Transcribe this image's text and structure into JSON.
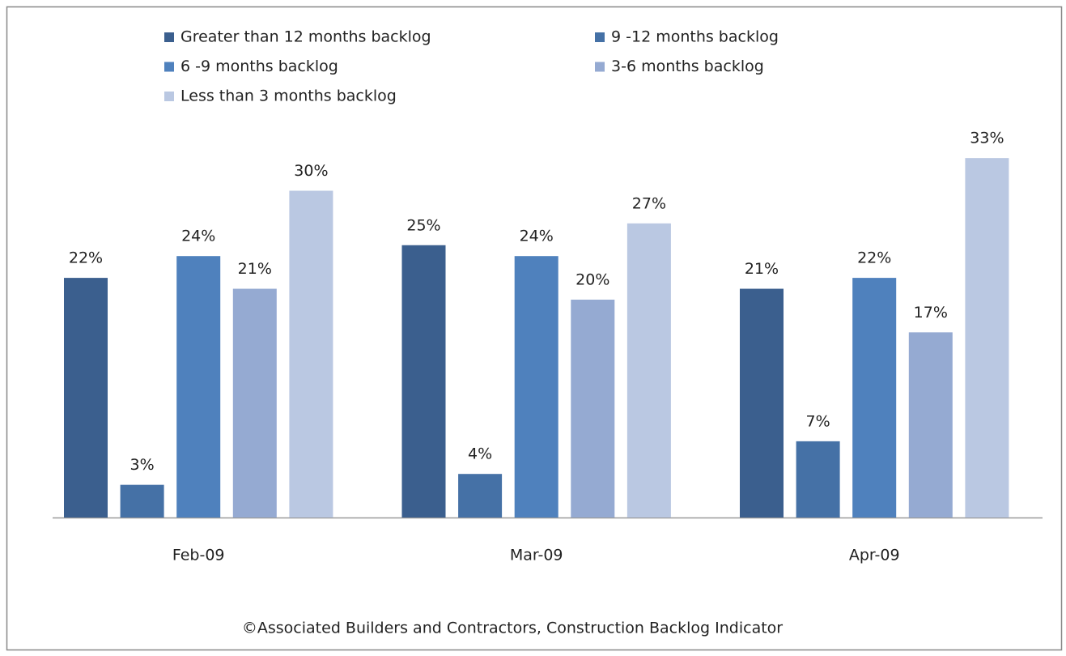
{
  "chart_data": {
    "type": "bar",
    "categories": [
      "Feb-09",
      "Mar-09",
      "Apr-09"
    ],
    "series": [
      {
        "name": "Greater than 12 months backlog",
        "color": "#3b5f8e",
        "values": [
          22,
          25,
          21
        ],
        "value_labels": [
          "22%",
          "25%",
          "21%"
        ]
      },
      {
        "name": "9 -12 months backlog",
        "color": "#4571a6",
        "values": [
          3,
          4,
          7
        ],
        "value_labels": [
          "3%",
          "4%",
          "7%"
        ]
      },
      {
        "name": "6 -9 months backlog",
        "color": "#4f81bd",
        "values": [
          24,
          24,
          22
        ],
        "value_labels": [
          "24%",
          "24%",
          "22%"
        ]
      },
      {
        "name": "3-6 months backlog",
        "color": "#95aad2",
        "values": [
          21,
          20,
          17
        ],
        "value_labels": [
          "21%",
          "20%",
          "17%"
        ]
      },
      {
        "name": "Less than 3 months backlog",
        "color": "#bac8e2",
        "values": [
          30,
          27,
          33
        ],
        "value_labels": [
          "30%",
          "27%",
          "33%"
        ]
      }
    ],
    "footnote": "©Associated Builders and Contractors, Construction Backlog Indicator"
  }
}
